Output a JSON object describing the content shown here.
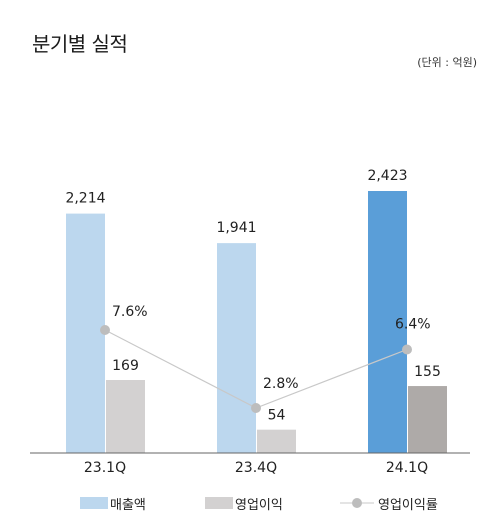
{
  "header": {
    "title": "분기별 실적",
    "unit": "(단위 : 억원)"
  },
  "colors": {
    "revenue": "#bcd7ee",
    "revenue_highlight": "#5a9ed8",
    "op_income": "#d3d1d1",
    "op_income_highlight": "#aeaaa8",
    "margin_line": "#c8c8c8",
    "margin_marker": "#bdbdbd",
    "axis": "#666666"
  },
  "chart_data": {
    "type": "bar",
    "title": "분기별 실적",
    "unit": "(단위 : 억원)",
    "categories": [
      "23.1Q",
      "23.4Q",
      "24.1Q"
    ],
    "series": [
      {
        "name": "매출액",
        "type": "bar",
        "values": [
          2214,
          1941,
          2423
        ],
        "labels": [
          "2,214",
          "1,941",
          "2,423"
        ]
      },
      {
        "name": "영업이익",
        "type": "bar",
        "values": [
          169,
          54,
          155
        ],
        "labels": [
          "169",
          "54",
          "155"
        ]
      },
      {
        "name": "영업이익률",
        "type": "line",
        "values": [
          7.6,
          2.8,
          6.4
        ],
        "labels": [
          "7.6%",
          "2.8%",
          "6.4%"
        ]
      }
    ],
    "highlight_category": "24.1Q",
    "legend_position": "bottom",
    "grid": false
  },
  "legend": {
    "items": [
      "매출액",
      "영업이익",
      "영업이익률"
    ]
  }
}
